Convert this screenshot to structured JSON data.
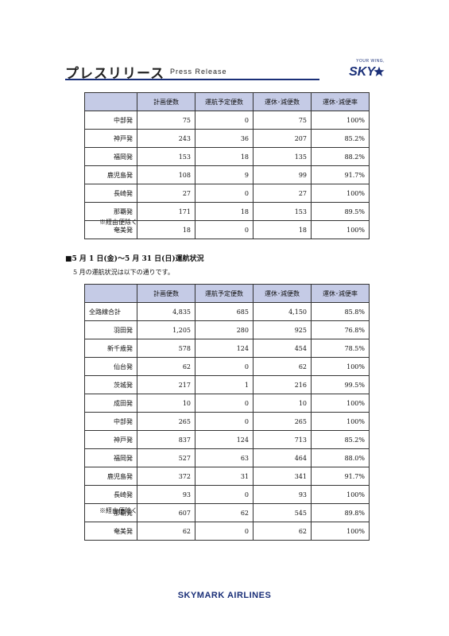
{
  "header": {
    "title": "プレスリリース",
    "subtitle": "Press Release",
    "logo_tagline": "YOUR WING,",
    "logo_text": "SKY",
    "brand_color": "#1a2f78"
  },
  "table1": {
    "headers": [
      "",
      "計画便数",
      "運航予定便数",
      "運休･減便数",
      "運休･減便率"
    ],
    "rows": [
      [
        "中部発",
        "75",
        "0",
        "75",
        "100%"
      ],
      [
        "神戸発",
        "243",
        "36",
        "207",
        "85.2%"
      ],
      [
        "福岡発",
        "153",
        "18",
        "135",
        "88.2%"
      ],
      [
        "鹿児島発",
        "108",
        "9",
        "99",
        "91.7%"
      ],
      [
        "長崎発",
        "27",
        "0",
        "27",
        "100%"
      ],
      [
        "那覇発",
        "171",
        "18",
        "153",
        "89.5%"
      ],
      [
        "奄美発",
        "18",
        "0",
        "18",
        "100%"
      ]
    ],
    "note": "※経由便除く"
  },
  "section": {
    "heading": "■5 月 1 日(金)～5 月 31 日(日)運航状況",
    "text": "5 月の運航状況は以下の通りです。"
  },
  "table2": {
    "headers": [
      "",
      "計画便数",
      "運航予定便数",
      "運休･減便数",
      "運休･減便率"
    ],
    "rows": [
      [
        "全路線合計",
        "4,835",
        "685",
        "4,150",
        "85.8%"
      ],
      [
        "羽田発",
        "1,205",
        "280",
        "925",
        "76.8%"
      ],
      [
        "新千歳発",
        "578",
        "124",
        "454",
        "78.5%"
      ],
      [
        "仙台発",
        "62",
        "0",
        "62",
        "100%"
      ],
      [
        "茨城発",
        "217",
        "1",
        "216",
        "99.5%"
      ],
      [
        "成田発",
        "10",
        "0",
        "10",
        "100%"
      ],
      [
        "中部発",
        "265",
        "0",
        "265",
        "100%"
      ],
      [
        "神戸発",
        "837",
        "124",
        "713",
        "85.2%"
      ],
      [
        "福岡発",
        "527",
        "63",
        "464",
        "88.0%"
      ],
      [
        "鹿児島発",
        "372",
        "31",
        "341",
        "91.7%"
      ],
      [
        "長崎発",
        "93",
        "0",
        "93",
        "100%"
      ],
      [
        "那覇発",
        "607",
        "62",
        "545",
        "89.8%"
      ],
      [
        "奄美発",
        "62",
        "0",
        "62",
        "100%"
      ]
    ],
    "note": "※経由便除く"
  },
  "footer": {
    "text": "SKYMARK AIRLINES"
  }
}
